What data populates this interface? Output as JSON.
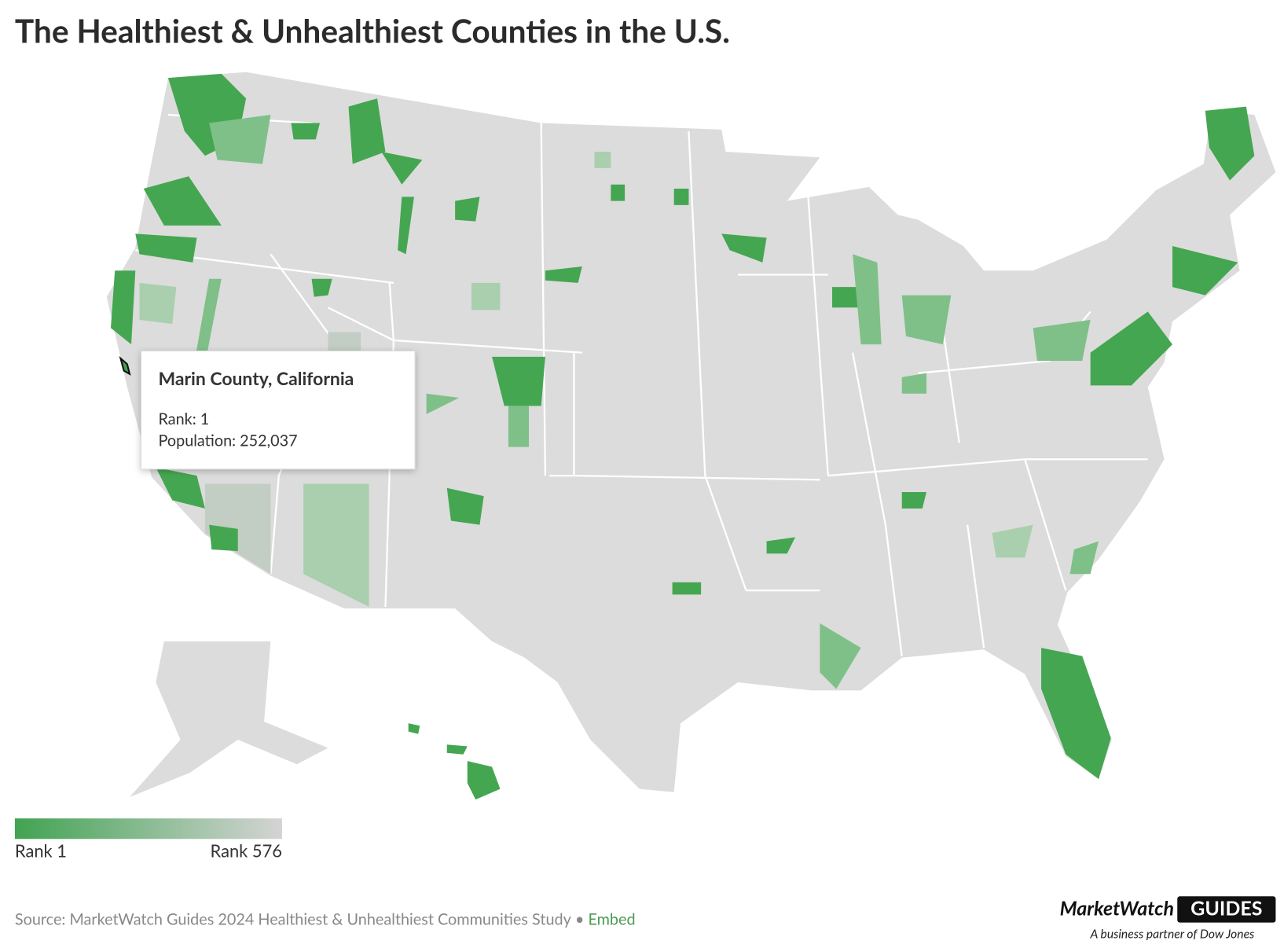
{
  "header": {
    "title": "The Healthiest & Unhealthiest Counties in the U.S."
  },
  "tooltip": {
    "title": "Marin County, California",
    "lines": [
      "Rank: 1",
      "Population: 252,037"
    ]
  },
  "legend": {
    "min_label": "Rank 1",
    "max_label": "Rank 576",
    "colors": [
      "#41a352",
      "#d4d4d4"
    ]
  },
  "source": {
    "text": "Source: MarketWatch Guides 2024 Healthiest & Unhealthiest Communities Study",
    "link": "Embed"
  },
  "logo": {
    "brand": "MarketWatch",
    "product": "GUIDES",
    "tagline": "A business partner of Dow Jones"
  }
}
